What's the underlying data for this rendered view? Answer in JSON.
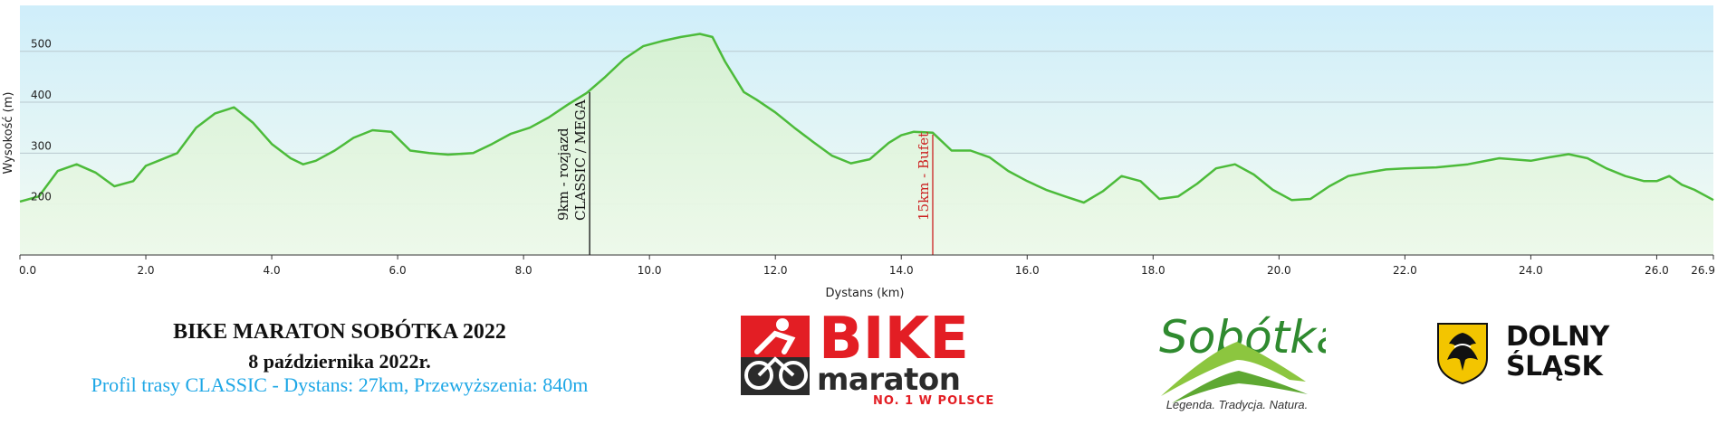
{
  "chart_data": {
    "type": "area",
    "xlabel": "Dystans  (km)",
    "ylabel": "Wysokość (m)",
    "xlim": [
      0,
      26.9
    ],
    "ylim": [
      100,
      590
    ],
    "x_ticks": [
      0,
      2,
      4,
      6,
      8,
      10,
      12,
      14,
      16,
      18,
      20,
      22,
      24,
      26,
      26.9
    ],
    "x_tick_labels": [
      "0.0",
      "2.0",
      "4.0",
      "6.0",
      "8.0",
      "10.0",
      "12.0",
      "14.0",
      "16.0",
      "18.0",
      "20.0",
      "22.0",
      "24.0",
      "26.0",
      "26.9"
    ],
    "y_ticks": [
      200,
      300,
      400,
      500
    ],
    "y_tick_labels": [
      "200",
      "300",
      "400",
      "500"
    ],
    "grid": true,
    "colors": {
      "line": "#4cbb3a",
      "fill": "#d9f3d6",
      "bg_top": "#cfeefa",
      "bg_bottom": "#f4fbf2"
    },
    "x": [
      0,
      0.3,
      0.6,
      0.9,
      1.2,
      1.5,
      1.8,
      2.0,
      2.2,
      2.5,
      2.8,
      3.1,
      3.4,
      3.7,
      4.0,
      4.3,
      4.5,
      4.7,
      5.0,
      5.3,
      5.6,
      5.9,
      6.2,
      6.5,
      6.8,
      7.2,
      7.5,
      7.8,
      8.1,
      8.4,
      8.7,
      9.0,
      9.3,
      9.6,
      9.9,
      10.2,
      10.5,
      10.8,
      11.0,
      11.2,
      11.5,
      11.7,
      12.0,
      12.3,
      12.6,
      12.9,
      13.2,
      13.5,
      13.8,
      14.0,
      14.2,
      14.5,
      14.8,
      15.1,
      15.4,
      15.7,
      16.0,
      16.3,
      16.6,
      16.9,
      17.2,
      17.5,
      17.8,
      18.1,
      18.4,
      18.7,
      19.0,
      19.3,
      19.6,
      19.9,
      20.2,
      20.5,
      20.8,
      21.1,
      21.4,
      21.7,
      22.0,
      22.5,
      23.0,
      23.5,
      24.0,
      24.3,
      24.6,
      24.9,
      25.2,
      25.5,
      25.8,
      26.0,
      26.2,
      26.4,
      26.6,
      26.9
    ],
    "values": [
      205,
      215,
      265,
      278,
      262,
      235,
      245,
      275,
      285,
      300,
      350,
      378,
      390,
      360,
      318,
      290,
      278,
      285,
      305,
      330,
      345,
      342,
      305,
      300,
      297,
      300,
      318,
      338,
      350,
      370,
      395,
      418,
      450,
      485,
      510,
      520,
      528,
      534,
      528,
      480,
      420,
      405,
      380,
      350,
      322,
      295,
      280,
      288,
      320,
      335,
      342,
      340,
      305,
      305,
      292,
      265,
      245,
      228,
      215,
      203,
      225,
      255,
      245,
      210,
      215,
      240,
      270,
      278,
      258,
      228,
      208,
      210,
      235,
      255,
      262,
      268,
      270,
      272,
      278,
      290,
      285,
      292,
      298,
      290,
      270,
      255,
      245,
      245,
      255,
      238,
      228,
      208
    ],
    "annotations": [
      {
        "x": 9.05,
        "lines": [
          "9km - rozjazd",
          "CLASSIC / MEGA"
        ],
        "color": "#111111"
      },
      {
        "x": 14.5,
        "lines": [
          "15km - Bufet"
        ],
        "color": "#cc2222"
      }
    ]
  },
  "footer": {
    "event_title": "BIKE MARATON SOBÓTKA 2022",
    "event_date": "8 października 2022r.",
    "profile_text": "Profil trasy CLASSIC - Dystans: 27km, Przewyższenia: 840m"
  },
  "logos": {
    "bike": {
      "word1": "BIKE",
      "word2": "maraton",
      "word3": "NO. 1 W POLSCE",
      "icon": "cyclist-icon"
    },
    "sobotka": {
      "name": "Sobótka",
      "tagline": "Legenda. Tradycja. Natura.",
      "icon": "hills-icon"
    },
    "dolny_slask": {
      "line1": "DOLNY",
      "line2": "ŚLĄSK",
      "icon": "eagle-shield-icon"
    }
  }
}
